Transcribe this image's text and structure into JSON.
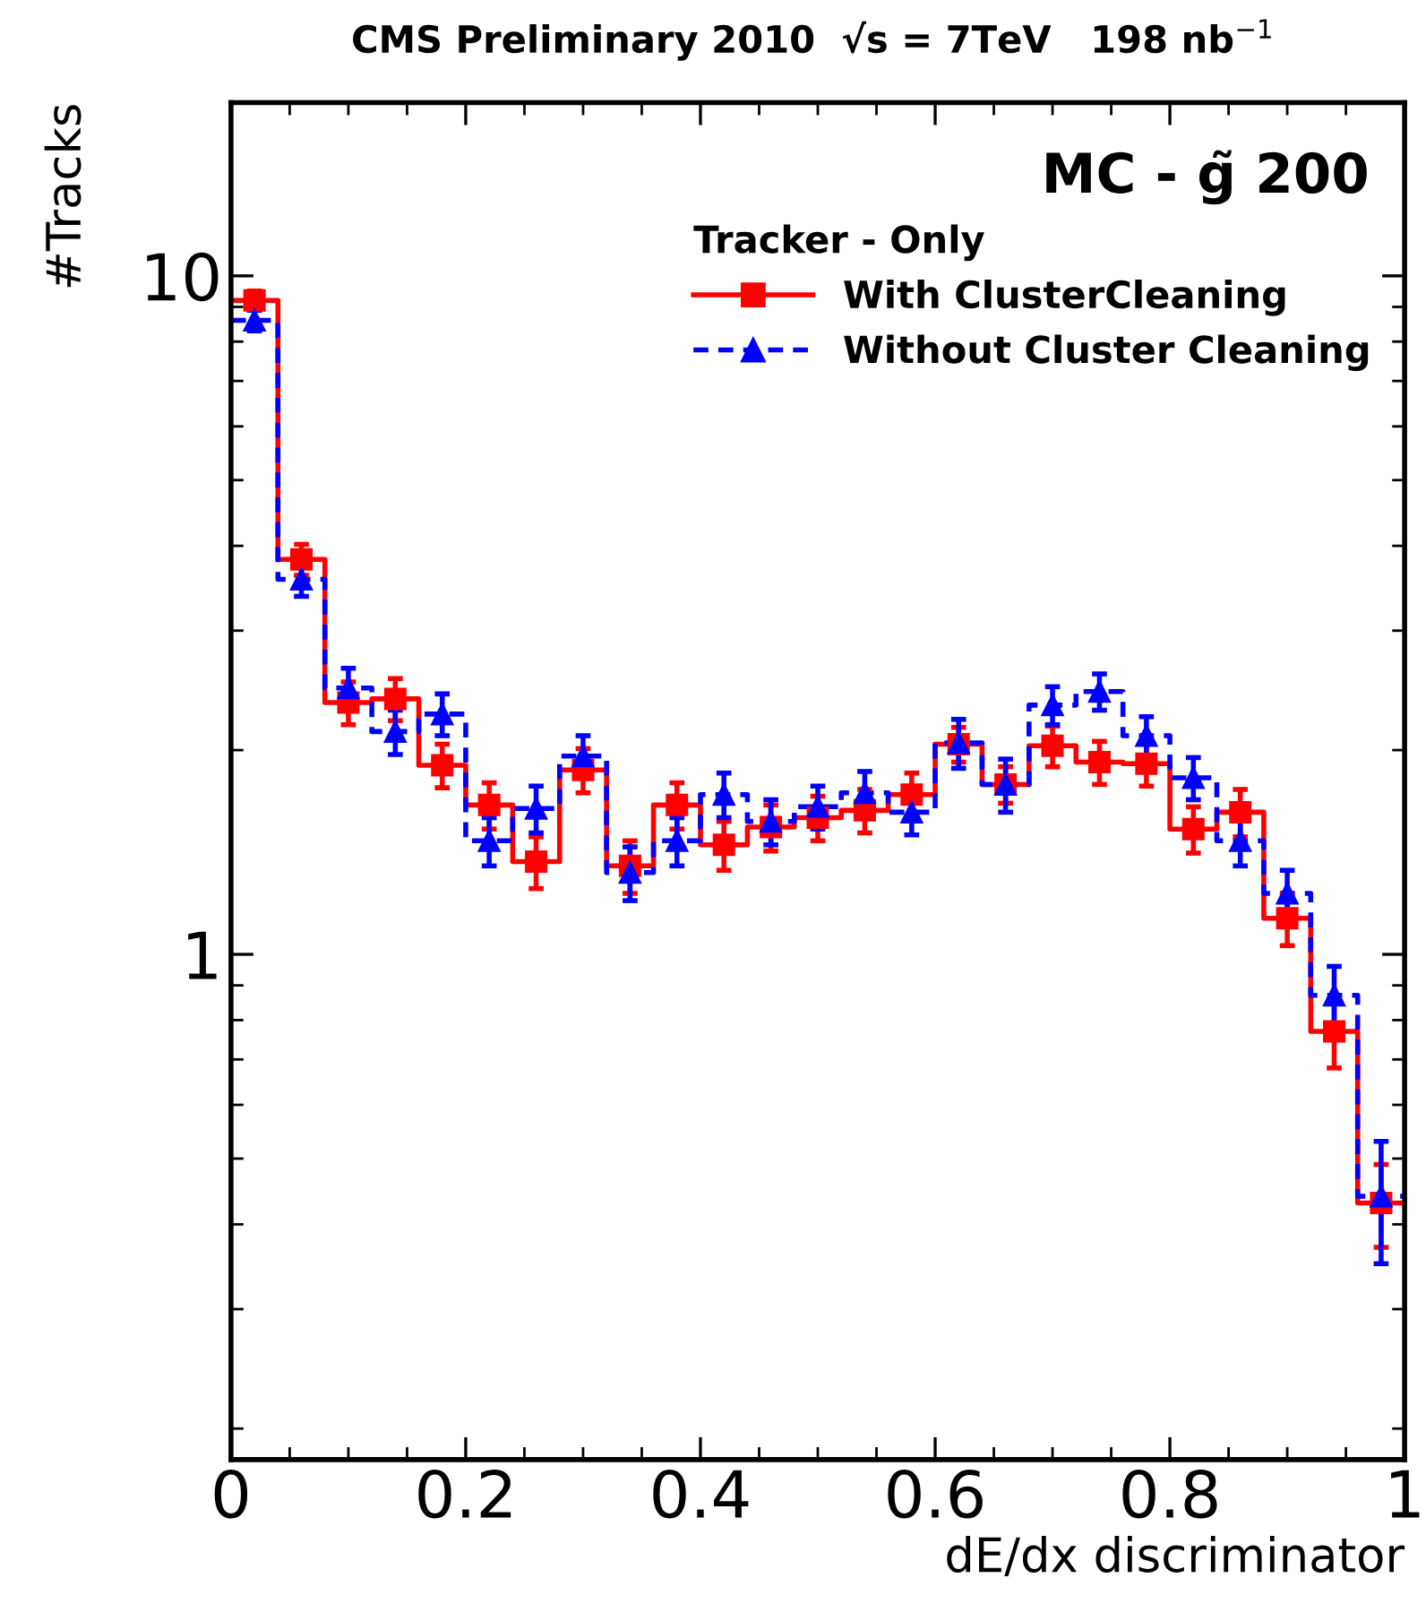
{
  "chart_data": {
    "type": "histogram",
    "title": "CMS Preliminary 2010  √s = 7TeV   198 nb$^{−1}$",
    "xlabel": "dE/dx discriminator",
    "ylabel": "#Tracks",
    "legend_title": "Tracker - Only",
    "annotations": [
      "MC - g̃ 200"
    ],
    "bins": [
      0,
      0.04,
      0.08,
      0.12,
      0.16,
      0.2,
      0.24,
      0.28,
      0.32,
      0.36,
      0.4,
      0.44,
      0.48,
      0.52,
      0.56,
      0.6,
      0.64,
      0.68,
      0.72,
      0.76,
      0.8,
      0.84,
      0.88,
      0.92,
      0.96,
      1
    ],
    "series": [
      {
        "name": "With ClusterCleaning",
        "color": "#ff0000",
        "line_style": "solid",
        "values": [
          9.2,
          3.82,
          2.35,
          2.38,
          1.9,
          1.66,
          1.37,
          1.87,
          1.35,
          1.66,
          1.45,
          1.54,
          1.59,
          1.63,
          1.72,
          2.04,
          1.78,
          2.03,
          1.92,
          1.91,
          1.53,
          1.62,
          1.13,
          0.77,
          0.43
        ]
      },
      {
        "name": "Without Cluster Cleaning",
        "color": "#0000ff",
        "line_style": "dashed",
        "values": [
          8.6,
          3.57,
          2.47,
          2.13,
          2.26,
          1.47,
          1.64,
          1.96,
          1.32,
          1.47,
          1.72,
          1.57,
          1.65,
          1.73,
          1.62,
          2.05,
          1.78,
          2.33,
          2.44,
          2.1,
          1.82,
          1.47,
          1.23,
          0.87,
          0.44
        ]
      },
      {
        "type": "scatter",
        "color": "#ff0000",
        "marker": "square",
        "x": [
          0.02,
          0.06,
          0.1,
          0.14,
          0.18,
          0.22,
          0.26,
          0.3,
          0.34,
          0.38,
          0.42,
          0.46,
          0.5,
          0.54,
          0.58,
          0.62,
          0.66,
          0.7,
          0.74,
          0.78,
          0.82,
          0.86,
          0.9,
          0.94,
          0.98
        ],
        "values": [
          9.2,
          3.82,
          2.35,
          2.38,
          1.9,
          1.66,
          1.37,
          1.87,
          1.35,
          1.66,
          1.45,
          1.54,
          1.59,
          1.63,
          1.72,
          2.04,
          1.78,
          2.03,
          1.92,
          1.91,
          1.53,
          1.62,
          1.13,
          0.77,
          0.43
        ],
        "errors": [
          0.3,
          0.2,
          0.17,
          0.17,
          0.14,
          0.13,
          0.12,
          0.14,
          0.12,
          0.13,
          0.12,
          0.12,
          0.12,
          0.12,
          0.13,
          0.12,
          0.11,
          0.14,
          0.14,
          0.14,
          0.12,
          0.13,
          0.1,
          0.09,
          0.06
        ]
      },
      {
        "type": "scatter",
        "color": "#0000ff",
        "marker": "triangle",
        "x": [
          0.02,
          0.06,
          0.1,
          0.14,
          0.18,
          0.22,
          0.26,
          0.3,
          0.34,
          0.38,
          0.42,
          0.46,
          0.5,
          0.54,
          0.58,
          0.62,
          0.66,
          0.7,
          0.74,
          0.78,
          0.82,
          0.86,
          0.9,
          0.94,
          0.98
        ],
        "values": [
          8.6,
          3.57,
          2.47,
          2.13,
          2.26,
          1.47,
          1.64,
          1.96,
          1.32,
          1.47,
          1.72,
          1.57,
          1.65,
          1.73,
          1.62,
          2.05,
          1.78,
          2.33,
          2.44,
          2.1,
          1.82,
          1.47,
          1.23,
          0.87,
          0.44
        ],
        "errors": [
          0.3,
          0.2,
          0.17,
          0.16,
          0.16,
          0.12,
          0.13,
          0.14,
          0.12,
          0.12,
          0.13,
          0.12,
          0.12,
          0.13,
          0.12,
          0.17,
          0.16,
          0.15,
          0.15,
          0.14,
          0.13,
          0.12,
          0.1,
          0.09,
          0.09
        ]
      }
    ],
    "log": "y",
    "xlim": [
      0,
      1
    ],
    "ylim": [
      0.18,
      18
    ],
    "xticks": [
      0,
      {
        "value": 0.05,
        "label": null
      },
      {
        "value": 0.1,
        "label": null
      },
      {
        "value": 0.15,
        "label": null
      },
      0.2,
      {
        "value": 0.25,
        "label": null
      },
      {
        "value": 0.3,
        "label": null
      },
      {
        "value": 0.35,
        "label": null
      },
      0.4,
      {
        "value": 0.45,
        "label": null
      },
      {
        "value": 0.5,
        "label": null
      },
      {
        "value": 0.55,
        "label": null
      },
      0.6,
      {
        "value": 0.65,
        "label": null
      },
      {
        "value": 0.7,
        "label": null
      },
      {
        "value": 0.75,
        "label": null
      },
      0.8,
      {
        "value": 0.85,
        "label": null
      },
      {
        "value": 0.9,
        "label": null
      },
      {
        "value": 0.95,
        "label": null
      },
      1
    ],
    "yticks": [
      {
        "value": 0.2,
        "label": null
      },
      {
        "value": 0.3,
        "label": null
      },
      {
        "value": 0.4,
        "label": null
      },
      {
        "value": 0.5,
        "label": null
      },
      {
        "value": 0.6,
        "label": null
      },
      {
        "value": 0.7,
        "label": null
      },
      {
        "value": 0.8,
        "label": null
      },
      {
        "value": 0.9,
        "label": null
      },
      1,
      {
        "value": 2,
        "label": null
      },
      {
        "value": 3,
        "label": null
      },
      {
        "value": 4,
        "label": null
      },
      {
        "value": 5,
        "label": null
      },
      {
        "value": 6,
        "label": null
      },
      {
        "value": 7,
        "label": null
      },
      {
        "value": 8,
        "label": null
      },
      {
        "value": 9,
        "label": null
      },
      10
    ],
    "grid": false,
    "legend": "top right"
  }
}
